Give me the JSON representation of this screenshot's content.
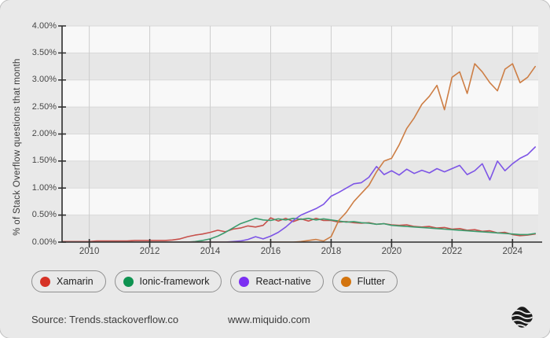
{
  "card_title": "stack-overflow-framework-trends",
  "y_axis": {
    "title": "% of Stack Overflow questions that month"
  },
  "footer": {
    "source": "Source: Trends.stackoverflow.co",
    "website": "www.miquido.com",
    "logo": "miquido-logo"
  },
  "chart_style": {
    "card_bg": "#e9e9e9",
    "band_light": "#f8f8f8",
    "band_dark": "#e7e7e7",
    "grid_vertical": "#cdcdcd",
    "grid_horizontal": "#d9d9d9",
    "axis": "#2e2e2e",
    "tick_label": "#474747"
  },
  "chart_data": {
    "type": "line",
    "title": "",
    "xlabel": "",
    "ylabel": "% of Stack Overflow questions that month",
    "xlim": [
      2009.1,
      2024.85
    ],
    "ylim": [
      0,
      4
    ],
    "x_tick_years": [
      2010,
      2012,
      2014,
      2016,
      2018,
      2020,
      2022,
      2024
    ],
    "y_tick_values": [
      0,
      0.5,
      1,
      1.5,
      2,
      2.5,
      3,
      3.5,
      4
    ],
    "y_tick_labels": [
      "0.00%",
      "0.50%",
      "1.00%",
      "1.50%",
      "2.00%",
      "2.50%",
      "3.00%",
      "3.50%",
      "4.00%"
    ],
    "grid": "banded",
    "legend_position": "bottom",
    "x": [
      2009.0,
      2009.25,
      2009.5,
      2009.75,
      2010.0,
      2010.25,
      2010.5,
      2010.75,
      2011.0,
      2011.25,
      2011.5,
      2011.75,
      2012.0,
      2012.25,
      2012.5,
      2012.75,
      2013.0,
      2013.25,
      2013.5,
      2013.75,
      2014.0,
      2014.25,
      2014.5,
      2014.75,
      2015.0,
      2015.25,
      2015.5,
      2015.75,
      2016.0,
      2016.25,
      2016.5,
      2016.75,
      2017.0,
      2017.25,
      2017.5,
      2017.75,
      2018.0,
      2018.25,
      2018.5,
      2018.75,
      2019.0,
      2019.25,
      2019.5,
      2019.75,
      2020.0,
      2020.25,
      2020.5,
      2020.75,
      2021.0,
      2021.25,
      2021.5,
      2021.75,
      2022.0,
      2022.25,
      2022.5,
      2022.75,
      2023.0,
      2023.25,
      2023.5,
      2023.75,
      2024.0,
      2024.25,
      2024.5,
      2024.75
    ],
    "series": [
      {
        "name": "Xamarin",
        "line_color": "#c7504b",
        "dot_color": "#d63226",
        "values": [
          0.01,
          0.01,
          0.01,
          0.01,
          0.01,
          0.02,
          0.02,
          0.02,
          0.02,
          0.02,
          0.03,
          0.03,
          0.03,
          0.03,
          0.03,
          0.04,
          0.06,
          0.1,
          0.13,
          0.15,
          0.18,
          0.22,
          0.19,
          0.24,
          0.26,
          0.3,
          0.28,
          0.31,
          0.45,
          0.39,
          0.44,
          0.38,
          0.43,
          0.39,
          0.44,
          0.4,
          0.4,
          0.37,
          0.38,
          0.36,
          0.35,
          0.36,
          0.33,
          0.34,
          0.32,
          0.31,
          0.32,
          0.29,
          0.28,
          0.29,
          0.26,
          0.27,
          0.24,
          0.25,
          0.22,
          0.23,
          0.2,
          0.21,
          0.17,
          0.18,
          0.14,
          0.12,
          0.13,
          0.15
        ]
      },
      {
        "name": "Ionic-framework",
        "line_color": "#3c9c6e",
        "dot_color": "#0f9351",
        "values": [
          0,
          0,
          0,
          0,
          0,
          0,
          0,
          0,
          0,
          0,
          0,
          0,
          0,
          0,
          0,
          0,
          0,
          0,
          0.01,
          0.03,
          0.06,
          0.11,
          0.18,
          0.26,
          0.34,
          0.39,
          0.44,
          0.41,
          0.4,
          0.43,
          0.41,
          0.44,
          0.42,
          0.44,
          0.41,
          0.43,
          0.41,
          0.39,
          0.37,
          0.38,
          0.36,
          0.35,
          0.33,
          0.34,
          0.31,
          0.3,
          0.29,
          0.28,
          0.27,
          0.26,
          0.25,
          0.24,
          0.23,
          0.22,
          0.21,
          0.2,
          0.19,
          0.18,
          0.17,
          0.16,
          0.15,
          0.14,
          0.14,
          0.16
        ]
      },
      {
        "name": "React-native",
        "line_color": "#7d55e6",
        "dot_color": "#7b2ff2",
        "values": [
          0,
          0,
          0,
          0,
          0,
          0,
          0,
          0,
          0,
          0,
          0,
          0,
          0,
          0,
          0,
          0,
          0,
          0,
          0,
          0,
          0,
          0,
          0,
          0.01,
          0.02,
          0.05,
          0.1,
          0.06,
          0.11,
          0.18,
          0.28,
          0.4,
          0.5,
          0.56,
          0.62,
          0.7,
          0.85,
          0.92,
          1.0,
          1.08,
          1.1,
          1.2,
          1.4,
          1.25,
          1.32,
          1.24,
          1.35,
          1.27,
          1.33,
          1.28,
          1.36,
          1.3,
          1.36,
          1.42,
          1.25,
          1.32,
          1.45,
          1.15,
          1.5,
          1.32,
          1.45,
          1.55,
          1.62,
          1.76
        ]
      },
      {
        "name": "Flutter",
        "line_color": "#cd7e45",
        "dot_color": "#d3740e",
        "values": [
          0,
          0,
          0,
          0,
          0,
          0,
          0,
          0,
          0,
          0,
          0,
          0,
          0,
          0,
          0,
          0,
          0,
          0,
          0,
          0,
          0,
          0,
          0,
          0,
          0,
          0,
          0,
          0,
          0,
          0,
          0,
          0,
          0.01,
          0.03,
          0.05,
          0.02,
          0.1,
          0.4,
          0.55,
          0.75,
          0.9,
          1.05,
          1.3,
          1.5,
          1.55,
          1.8,
          2.1,
          2.3,
          2.55,
          2.7,
          2.9,
          2.45,
          3.05,
          3.15,
          2.75,
          3.3,
          3.15,
          2.95,
          2.8,
          3.2,
          3.3,
          2.95,
          3.05,
          3.25
        ]
      }
    ]
  }
}
